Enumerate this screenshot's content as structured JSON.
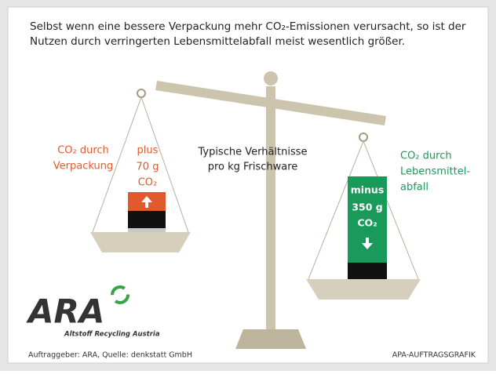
{
  "title_lines": [
    "Selbst wenn eine bessere Verpackung mehr CO₂-Emissionen verursacht, so ist der",
    "Nutzen durch verringerten Lebensmittelabfall meist wesentlich größer."
  ],
  "left_pan": {
    "label_lines": [
      "CO₂ durch",
      "Verpackung"
    ],
    "amount_lines": [
      "plus",
      "70 g",
      "CO₂"
    ]
  },
  "center_lines": [
    "Typische Verhältnisse",
    "pro kg Frischware"
  ],
  "right_pan": {
    "label_lines": [
      "CO₂ durch",
      "Lebensmittel-",
      "abfall"
    ],
    "amount_lines": [
      "minus",
      "350 g",
      "CO₂"
    ]
  },
  "logo": {
    "name": "ARA",
    "subtitle": "Altstoff Recycling Austria"
  },
  "footer": {
    "source": "Auftraggeber: ARA, Quelle: denkstatt GmbH",
    "credit": "APA-AUFTRAGSGRAFIK"
  }
}
